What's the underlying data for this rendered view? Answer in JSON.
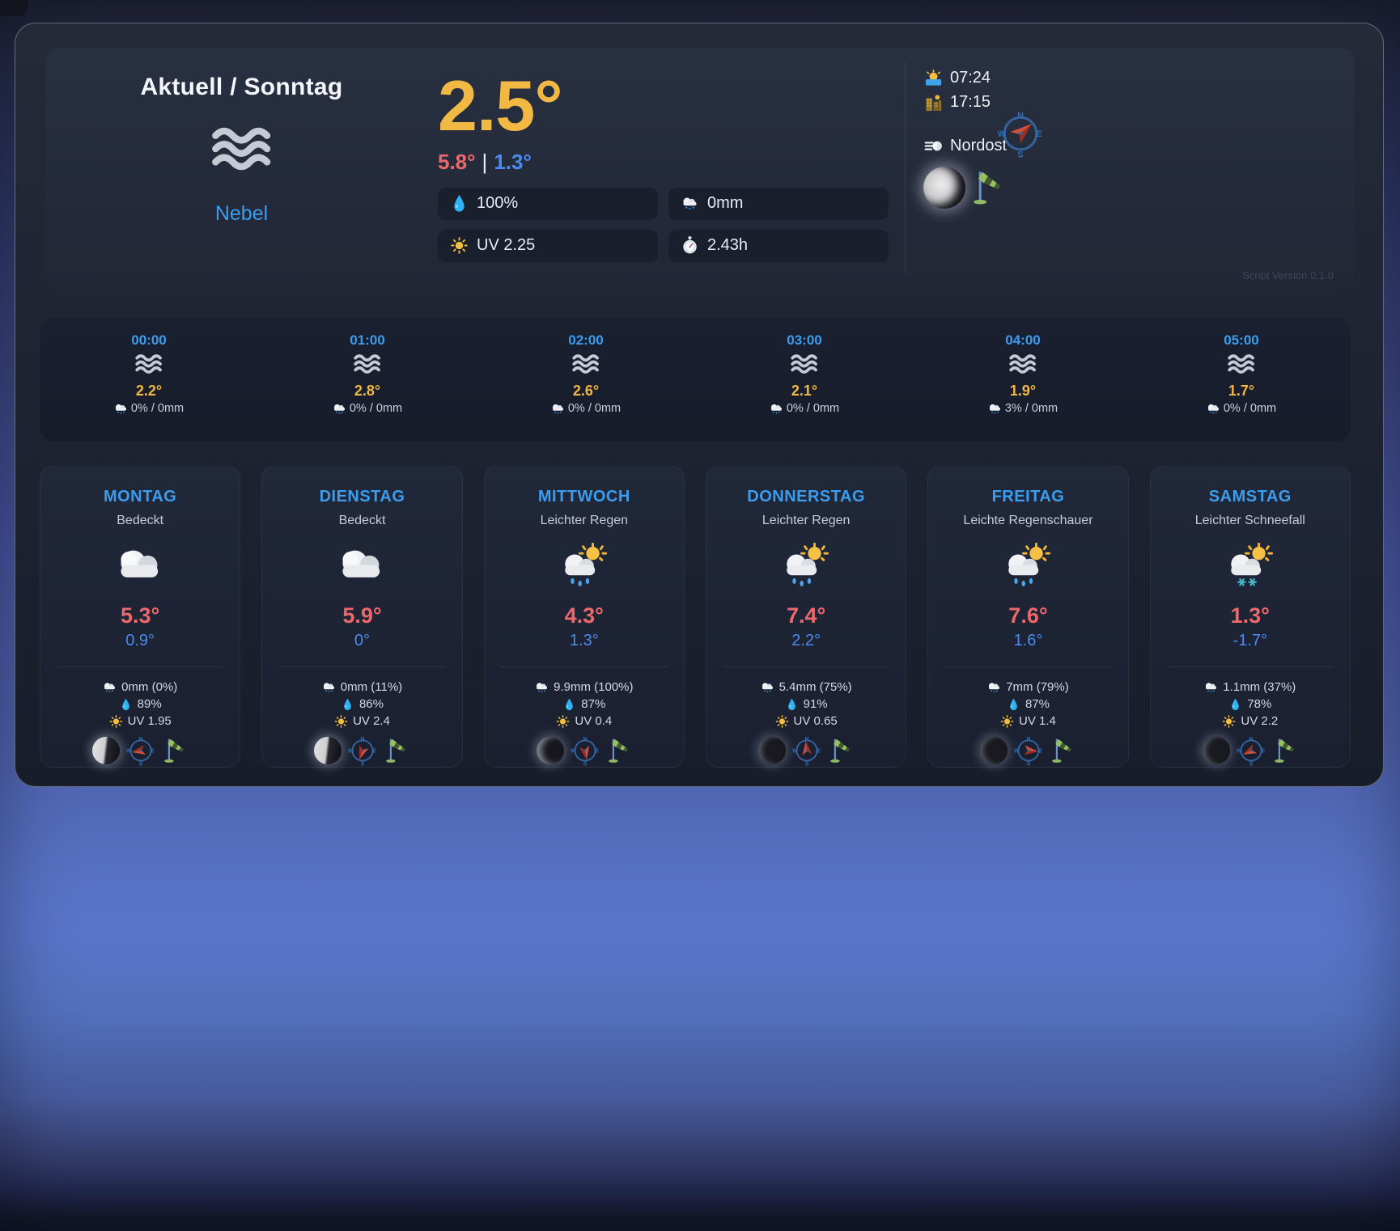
{
  "colors": {
    "accent_blue": "#3b9df0",
    "temp_yellow": "#f2b844",
    "temp_red": "#ed686d",
    "temp_low": "#4b8cf0"
  },
  "header": {
    "title": "Aktuell / Sonntag",
    "condition": "Nebel",
    "condition_icon": "fog-icon",
    "temp": "2.5°",
    "temp_high": "5.8°",
    "temp_sep": "|",
    "temp_low": "1.3°",
    "stats": {
      "humidity": "100%",
      "humidity_icon": "droplet-icon",
      "precipitation": "0mm",
      "precipitation_icon": "rain-cloud-icon",
      "uv": "UV 2.25",
      "uv_icon": "sun-icon",
      "sun_hours": "2.43h",
      "sun_hours_icon": "stopwatch-icon"
    },
    "sunrise": "07:24",
    "sunrise_icon": "sunrise-icon",
    "sunset": "17:15",
    "sunset_icon": "sunset-city-icon",
    "wind_direction": "Nordost",
    "wind_icon": "wind-gust-icon",
    "compass_icon": "compass-icon",
    "compass_needle_deg": 50,
    "moon_icon": "waning-gibbous-moon-icon",
    "moon_phase": "waning-gibbous",
    "windsock_icon": "windsock-icon",
    "script_version": "Script Version 0.1.0"
  },
  "hourly": [
    {
      "time": "00:00",
      "icon": "fog",
      "temp": "2.2°",
      "precip": "0% / 0mm"
    },
    {
      "time": "01:00",
      "icon": "fog",
      "temp": "2.8°",
      "precip": "0% / 0mm"
    },
    {
      "time": "02:00",
      "icon": "fog",
      "temp": "2.6°",
      "precip": "0% / 0mm"
    },
    {
      "time": "03:00",
      "icon": "fog",
      "temp": "2.1°",
      "precip": "0% / 0mm"
    },
    {
      "time": "04:00",
      "icon": "fog",
      "temp": "1.9°",
      "precip": "3% / 0mm"
    },
    {
      "time": "05:00",
      "icon": "fog",
      "temp": "1.7°",
      "precip": "0% / 0mm"
    }
  ],
  "daily": [
    {
      "day": "MONTAG",
      "condition": "Bedeckt",
      "icon": "cloud",
      "high": "5.3°",
      "low": "0.9°",
      "precip": "0mm (0%)",
      "humidity": "89%",
      "uv": "UV 1.95",
      "moon": "last-quarter",
      "needle_deg": 260
    },
    {
      "day": "DIENSTAG",
      "condition": "Bedeckt",
      "icon": "cloud",
      "high": "5.9°",
      "low": "0°",
      "precip": "0mm (11%)",
      "humidity": "86%",
      "uv": "UV 2.4",
      "moon": "last-quarter",
      "needle_deg": 200
    },
    {
      "day": "MITTWOCH",
      "condition": "Leichter Regen",
      "icon": "rain-sun",
      "high": "4.3°",
      "low": "1.3°",
      "precip": "9.9mm (100%)",
      "humidity": "87%",
      "uv": "UV 0.4",
      "moon": "waning-crescent",
      "needle_deg": 170
    },
    {
      "day": "DONNERSTAG",
      "condition": "Leichter Regen",
      "icon": "rain-sun",
      "high": "7.4°",
      "low": "2.2°",
      "precip": "5.4mm (75%)",
      "humidity": "91%",
      "uv": "UV 0.65",
      "moon": "new-moon",
      "needle_deg": 355
    },
    {
      "day": "FREITAG",
      "condition": "Leichte Regenschauer",
      "icon": "rain-sun",
      "high": "7.6°",
      "low": "1.6°",
      "precip": "7mm (79%)",
      "humidity": "87%",
      "uv": "UV 1.4",
      "moon": "new-moon",
      "needle_deg": 95
    },
    {
      "day": "SAMSTAG",
      "condition": "Leichter Schneefall",
      "icon": "snow-sun",
      "high": "1.3°",
      "low": "-1.7°",
      "precip": "1.1mm (37%)",
      "humidity": "78%",
      "uv": "UV 2.2",
      "moon": "new-moon",
      "needle_deg": 245
    }
  ]
}
